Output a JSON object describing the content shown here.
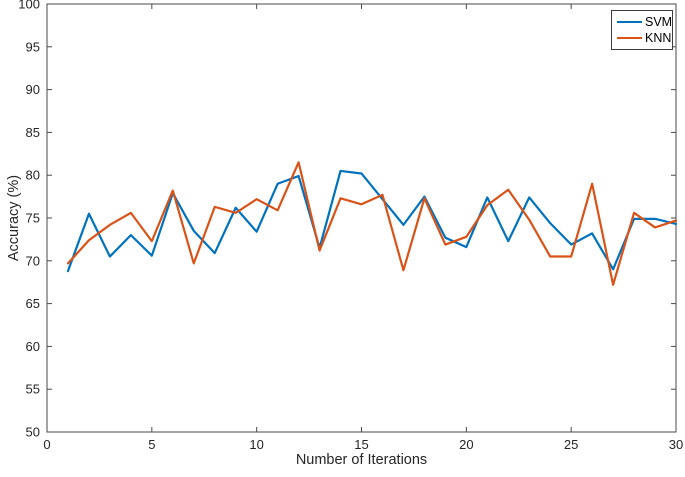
{
  "figure": {
    "background": "#ffffff",
    "axis_color": "#4a4a4a",
    "tick_label_color": "#262626"
  },
  "legend": {
    "entries": [
      {
        "label": "SVM",
        "color": "#0072BD"
      },
      {
        "label": "KNN",
        "color": "#D95319"
      }
    ]
  },
  "chart_data": {
    "type": "line",
    "title": "",
    "xlabel": "Number of Iterations",
    "ylabel": "Accuracy (%)",
    "xlim": [
      0,
      30
    ],
    "ylim": [
      50,
      100
    ],
    "xticks": [
      0,
      5,
      10,
      15,
      20,
      25,
      30
    ],
    "yticks": [
      50,
      55,
      60,
      65,
      70,
      75,
      80,
      85,
      90,
      95,
      100
    ],
    "grid": false,
    "legend_position": "top-right",
    "x": [
      1,
      2,
      3,
      4,
      5,
      6,
      7,
      8,
      9,
      10,
      11,
      12,
      13,
      14,
      15,
      16,
      17,
      18,
      19,
      20,
      21,
      22,
      23,
      24,
      25,
      26,
      27,
      28,
      29,
      30
    ],
    "series": [
      {
        "name": "SVM",
        "color": "#0072BD",
        "values": [
          68.8,
          75.5,
          70.5,
          73.0,
          70.6,
          77.9,
          73.5,
          70.9,
          76.2,
          73.4,
          79.0,
          79.9,
          71.5,
          80.5,
          80.2,
          77.2,
          74.2,
          77.5,
          72.7,
          71.6,
          77.4,
          72.3,
          77.4,
          74.4,
          71.9,
          73.2,
          69.0,
          74.9,
          74.9,
          74.3
        ]
      },
      {
        "name": "KNN",
        "color": "#D95319",
        "values": [
          69.7,
          72.4,
          74.2,
          75.6,
          72.3,
          78.2,
          69.7,
          76.3,
          75.6,
          77.2,
          75.9,
          81.5,
          71.2,
          77.3,
          76.6,
          77.7,
          68.9,
          77.3,
          71.9,
          72.8,
          76.5,
          78.3,
          74.8,
          70.5,
          70.5,
          79.0,
          67.2,
          75.6,
          73.9,
          74.7
        ]
      }
    ]
  }
}
